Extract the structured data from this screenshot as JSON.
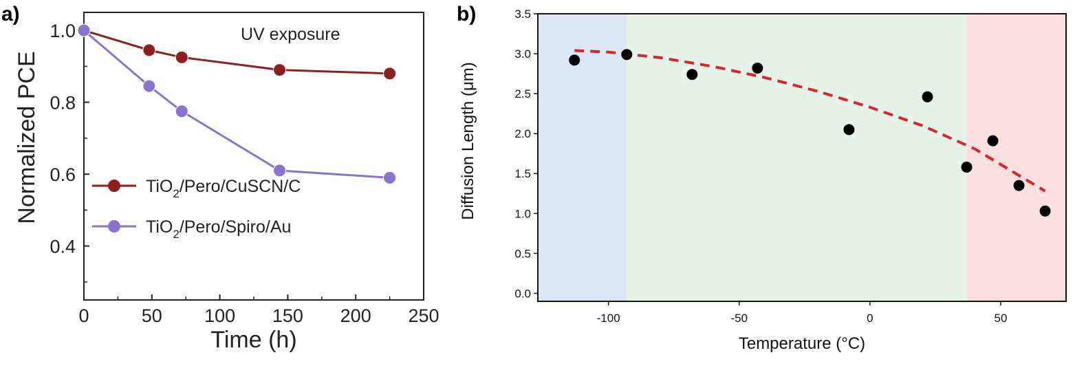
{
  "chart_data": [
    {
      "panel_label": "a)",
      "type": "line",
      "xlabel": "Time (h)",
      "ylabel": "Normalized PCE",
      "xlim": [
        0,
        250
      ],
      "ylim": [
        0.25,
        1.05
      ],
      "x_ticks": [
        0,
        50,
        100,
        150,
        200,
        250
      ],
      "y_ticks": [
        0.4,
        0.6,
        0.8,
        1.0
      ],
      "x_tick_labels": [
        "0",
        "50",
        "100",
        "150",
        "200",
        "250"
      ],
      "y_tick_labels": [
        "0.4",
        "0.6",
        "0.8",
        "1.0"
      ],
      "annotation": "UV exposure",
      "legend_position": "lower-left",
      "grid": false,
      "series": [
        {
          "name": "TiO2/Pero/CuSCN/C",
          "name_parts": [
            "TiO",
            "2",
            "/Pero/CuSCN/C"
          ],
          "color": "#8e1f1f",
          "x": [
            0,
            48,
            72,
            144,
            225
          ],
          "y": [
            1.0,
            0.945,
            0.925,
            0.89,
            0.88
          ]
        },
        {
          "name": "TiO2/Pero/Spiro/Au",
          "name_parts": [
            "TiO",
            "2",
            "/Pero/Spiro/Au"
          ],
          "color": "#8a73cc",
          "x": [
            0,
            48,
            72,
            144,
            225
          ],
          "y": [
            1.0,
            0.845,
            0.775,
            0.61,
            0.59
          ]
        }
      ]
    },
    {
      "panel_label": "b)",
      "type": "scatter",
      "xlabel": "Temperature (°C)",
      "ylabel": "Diffusion Length (μm)",
      "xlim": [
        -127,
        75
      ],
      "ylim": [
        -0.1,
        3.5
      ],
      "x_ticks": [
        -100,
        -50,
        0,
        50
      ],
      "y_ticks": [
        0.0,
        0.5,
        1.0,
        1.5,
        2.0,
        2.5,
        3.0,
        3.5
      ],
      "x_tick_labels": [
        "-100",
        "-50",
        "0",
        "50"
      ],
      "y_tick_labels": [
        "0.0",
        "0.5",
        "1.0",
        "1.5",
        "2.0",
        "2.5",
        "3.0",
        "3.5"
      ],
      "grid": false,
      "regions": [
        {
          "from": -127,
          "to": -93,
          "color": "#dbe7f4"
        },
        {
          "from": -93,
          "to": 37,
          "color": "#e6f3e8"
        },
        {
          "from": 37,
          "to": 75,
          "color": "#fbe0df"
        }
      ],
      "points": {
        "color": "#000000",
        "x": [
          -113,
          -93,
          -68,
          -43,
          -8,
          22,
          37,
          47,
          57,
          67
        ],
        "y": [
          2.92,
          2.99,
          2.74,
          2.82,
          2.05,
          2.46,
          1.58,
          1.91,
          1.35,
          1.03
        ]
      },
      "fit": {
        "color": "#d9262b",
        "style": "dashed",
        "x": [
          -113,
          -100,
          -80,
          -60,
          -40,
          -20,
          0,
          20,
          40,
          67
        ],
        "y": [
          3.04,
          3.02,
          2.95,
          2.84,
          2.7,
          2.53,
          2.33,
          2.1,
          1.81,
          1.28
        ]
      }
    }
  ]
}
